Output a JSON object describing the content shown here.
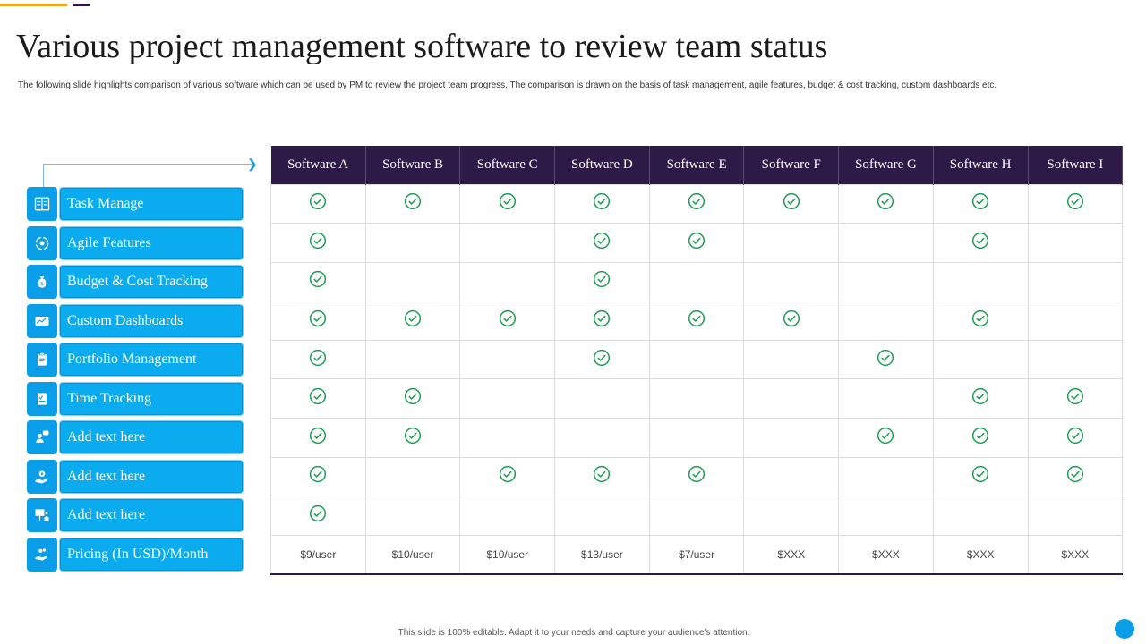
{
  "slide": {
    "title": "Various project management software to review team status",
    "subtitle": "The following slide highlights comparison of various software which can be used by PM  to review the project team progress. The comparison is drawn on the basis of task management,  agile features, budget & cost tracking, custom dashboards etc.",
    "footer": "This slide is 100% editable.  Adapt it to your needs and capture your audience's attention."
  },
  "colors": {
    "header_bg": "#2E1A47",
    "feature_blue": "#0AABEF",
    "check_green": "#1A9E4F",
    "accent_orange": "#F5A623"
  },
  "software": [
    "Software A",
    "Software B",
    "Software C",
    "Software D",
    "Software E",
    "Software F",
    "Software G",
    "Software H",
    "Software I"
  ],
  "features": [
    {
      "label": "Task Manage",
      "icon": "board-icon"
    },
    {
      "label": "Agile Features",
      "icon": "gear-cycle-icon"
    },
    {
      "label": "Budget & Cost Tracking",
      "icon": "money-bag-icon"
    },
    {
      "label": "Custom Dashboards",
      "icon": "dashboard-icon"
    },
    {
      "label": "Portfolio Management",
      "icon": "clipboard-icon"
    },
    {
      "label": "Time Tracking",
      "icon": "checklist-icon"
    },
    {
      "label": "Add text here",
      "icon": "person-chat-icon"
    },
    {
      "label": "Add text here",
      "icon": "hand-gear-icon"
    },
    {
      "label": "Add text here",
      "icon": "presentation-icon"
    },
    {
      "label": "Pricing (In USD)/Month",
      "icon": "hand-coins-icon"
    }
  ],
  "checks": [
    [
      1,
      1,
      1,
      1,
      1,
      1,
      1,
      1,
      1
    ],
    [
      1,
      0,
      0,
      1,
      1,
      0,
      0,
      1,
      0
    ],
    [
      1,
      0,
      0,
      1,
      0,
      0,
      0,
      0,
      0
    ],
    [
      1,
      1,
      1,
      1,
      1,
      1,
      0,
      1,
      0
    ],
    [
      1,
      0,
      0,
      1,
      0,
      0,
      1,
      0,
      0
    ],
    [
      1,
      1,
      0,
      0,
      0,
      0,
      0,
      1,
      1
    ],
    [
      1,
      1,
      0,
      0,
      0,
      0,
      1,
      1,
      1
    ],
    [
      1,
      0,
      1,
      1,
      1,
      0,
      0,
      1,
      1
    ],
    [
      1,
      0,
      0,
      0,
      0,
      0,
      0,
      0,
      0
    ]
  ],
  "pricing": [
    "$9/user",
    "$10/user",
    "$10/user",
    "$13/user",
    "$7/user",
    "$XXX",
    "$XXX",
    "$XXX",
    "$XXX"
  ]
}
